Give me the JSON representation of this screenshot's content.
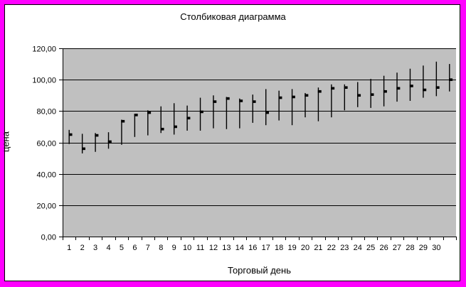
{
  "window": {
    "frame_color": "#ff00ff",
    "inner_border_color": "#000000",
    "background": "#ffffff"
  },
  "chart_data": {
    "type": "hlc",
    "title": "Столбиковая диаграмма",
    "xlabel": "Торговый день",
    "ylabel": "цена",
    "plot_bg": "#c0c0c0",
    "line_color": "#000000",
    "grid": true,
    "legend": false,
    "ylim": [
      0,
      120
    ],
    "y_ticks": [
      {
        "value": 0,
        "label": "0,00"
      },
      {
        "value": 20,
        "label": "20,00"
      },
      {
        "value": 40,
        "label": "40,00"
      },
      {
        "value": 60,
        "label": "60,00"
      },
      {
        "value": 80,
        "label": "80,00"
      },
      {
        "value": 100,
        "label": "100,00"
      },
      {
        "value": 120,
        "label": "120,00"
      }
    ],
    "x_tick_labels": [
      "1",
      "2",
      "3",
      "4",
      "5",
      "6",
      "7",
      "8",
      "9",
      "10",
      "11",
      "12",
      "13",
      "14",
      "16",
      "17",
      "18",
      "19",
      "20",
      "21",
      "22",
      "23",
      "24",
      "25",
      "26",
      "27",
      "28",
      "29",
      "30",
      ""
    ],
    "series": [
      {
        "name": "high",
        "values": [
          68,
          65.5,
          66,
          66.5,
          74.5,
          78,
          80.5,
          83,
          85,
          83.5,
          88.5,
          90,
          89,
          88,
          90.5,
          94,
          93,
          94,
          91.5,
          95,
          97,
          97,
          98.5,
          100.5,
          102.5,
          104.5,
          107,
          109,
          111.5,
          110
        ]
      },
      {
        "name": "low",
        "values": [
          59,
          53,
          54,
          56,
          58.5,
          63.5,
          64.5,
          66,
          65,
          67.5,
          67.5,
          69,
          68.5,
          69,
          72.5,
          71,
          74,
          71,
          76,
          73.5,
          76,
          80.5,
          82.5,
          82,
          83,
          86,
          86.5,
          88.5,
          89.5,
          92.5
        ]
      },
      {
        "name": "close",
        "values": [
          65,
          56,
          64.5,
          60.5,
          73.5,
          77.5,
          79,
          68.5,
          70,
          75.5,
          79.5,
          86,
          88,
          86.5,
          86,
          79,
          88.5,
          89,
          90,
          92.5,
          94.5,
          95,
          90,
          90.5,
          92.5,
          94.5,
          96,
          93.5,
          95,
          100
        ]
      }
    ]
  }
}
